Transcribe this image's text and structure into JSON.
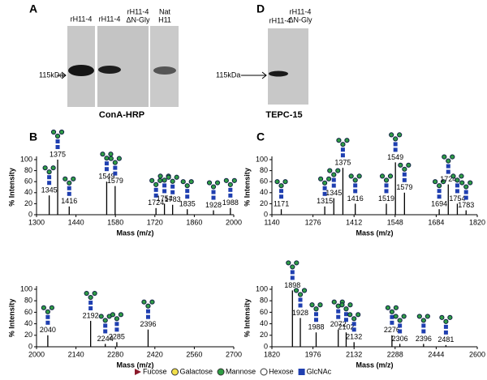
{
  "blots": [
    {
      "letter": "A",
      "lanes": [
        [
          "rH11-4"
        ],
        [
          "rH11-4"
        ],
        [
          "rH11-4",
          "ΔN-Gly"
        ],
        [
          "Nat",
          "H11"
        ]
      ],
      "marker": "115kDa",
      "stain": "ConA-HRP"
    },
    {
      "letter": "D",
      "lanes": [
        [
          "rH11-4"
        ],
        [
          "rH11-4",
          "ΔN-Gly"
        ]
      ],
      "marker": "115kDa",
      "stain": "TEPC-15"
    }
  ],
  "chart_data": [
    {
      "type": "spectrum",
      "panel": "B",
      "x_label": "Mass (m/z)",
      "y_label": "% Intensity",
      "x": [
        1345,
        1375,
        1416,
        1549,
        1579,
        1724,
        1754,
        1783,
        1835,
        1928,
        1988
      ],
      "values": [
        35,
        100,
        15,
        60,
        52,
        12,
        20,
        18,
        10,
        8,
        12
      ],
      "xlim": [
        1300,
        2000
      ],
      "xticks": [
        1300,
        1440,
        1580,
        1720,
        1860,
        2000
      ],
      "ylim": [
        0,
        100
      ],
      "yticks": [
        0,
        20,
        40,
        60,
        80,
        100
      ],
      "color": "#000000"
    },
    {
      "type": "spectrum",
      "x_label": "Mass (m/z)",
      "y_label": "% Intensity",
      "x": [
        2040,
        2192,
        2244,
        2285,
        2396
      ],
      "values": [
        20,
        45,
        5,
        8,
        30
      ],
      "xlim": [
        2000,
        2700
      ],
      "xticks": [
        2000,
        2140,
        2280,
        2420,
        2560,
        2700
      ],
      "ylim": [
        0,
        100
      ],
      "yticks": [
        0,
        20,
        40,
        60,
        80,
        100
      ],
      "color": "#000000"
    },
    {
      "type": "spectrum",
      "panel": "C",
      "x_label": "Mass (m/z)",
      "y_label": "% Intensity",
      "x": [
        1171,
        1315,
        1345,
        1375,
        1416,
        1519,
        1549,
        1579,
        1694,
        1724,
        1754,
        1783
      ],
      "values": [
        10,
        15,
        30,
        85,
        20,
        20,
        95,
        40,
        10,
        55,
        20,
        8
      ],
      "xlim": [
        1140,
        1820
      ],
      "xticks": [
        1140,
        1276,
        1412,
        1548,
        1684,
        1820
      ],
      "ylim": [
        0,
        100
      ],
      "yticks": [
        0,
        20,
        40,
        60,
        80,
        100
      ],
      "color": "#000000"
    },
    {
      "type": "spectrum",
      "x_label": "Mass (m/z)",
      "y_label": "% Intensity",
      "x": [
        1898,
        1928,
        1988,
        2072,
        2102,
        2132,
        2276,
        2306,
        2396,
        2481
      ],
      "values": [
        98,
        50,
        25,
        30,
        25,
        8,
        20,
        5,
        5,
        3
      ],
      "xlim": [
        1820,
        2600
      ],
      "xticks": [
        1820,
        1976,
        2132,
        2288,
        2444,
        2600
      ],
      "ylim": [
        0,
        100
      ],
      "yticks": [
        0,
        20,
        40,
        60,
        80,
        100
      ],
      "color": "#000000"
    }
  ],
  "legend": [
    {
      "label": "Fucose",
      "color": "#8b1a2b",
      "shape": "triangle"
    },
    {
      "label": "Galactose",
      "color": "#f2e04b",
      "shape": "circle"
    },
    {
      "label": "Mannose",
      "color": "#2f9e44",
      "shape": "circle"
    },
    {
      "label": "Hexose",
      "color": "#ffffff",
      "shape": "circle"
    },
    {
      "label": "GlcNAc",
      "color": "#1f3fb0",
      "shape": "square"
    }
  ]
}
